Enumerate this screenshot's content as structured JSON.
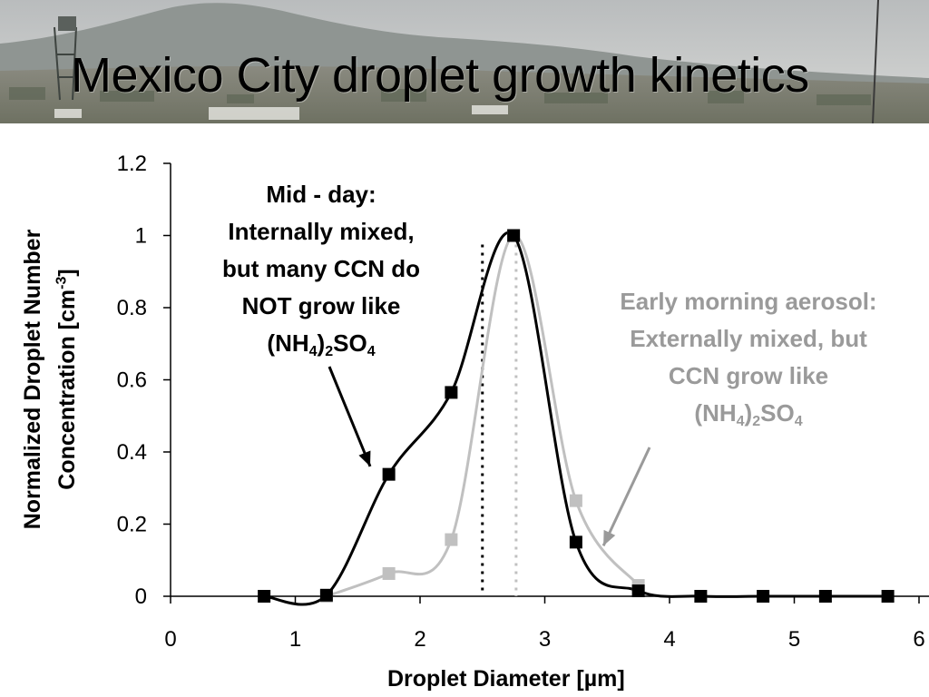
{
  "slide": {
    "title": "Mexico City droplet growth kinetics"
  },
  "colors": {
    "mid_day": "#000000",
    "early_morning": "#c0c0c0",
    "annotation_early_text": "#9a9a9a"
  },
  "chart_data": {
    "type": "line",
    "xlabel": "Droplet Diameter [µm]",
    "ylabel_line1": "Normalized Droplet Number",
    "ylabel_line2_prefix": "Concentration [cm",
    "ylabel_line2_sup": "-3",
    "ylabel_line2_suffix": "]",
    "xlim": [
      0,
      6
    ],
    "ylim": [
      0,
      1.2
    ],
    "x_ticks": [
      "0",
      "1",
      "2",
      "3",
      "4",
      "5",
      "6"
    ],
    "y_ticks": [
      "0",
      "0.2",
      "0.4",
      "0.6",
      "0.8",
      "1",
      "1.2"
    ],
    "grid": false,
    "series": [
      {
        "key": "mid_day",
        "marker": "square",
        "x": [
          0.75,
          1.25,
          1.75,
          2.25,
          2.75,
          3.25,
          3.75,
          4.25,
          4.75,
          5.25,
          5.75
        ],
        "y": [
          0.0,
          0.003,
          0.338,
          0.565,
          1.0,
          0.15,
          0.015,
          0.0,
          0.0,
          0.0,
          0.0
        ]
      },
      {
        "key": "early_morning",
        "marker": "square",
        "x": [
          1.25,
          1.75,
          2.25,
          2.75,
          3.25,
          3.75
        ],
        "y": [
          0.0,
          0.063,
          0.157,
          1.0,
          0.265,
          0.03
        ]
      }
    ],
    "vlines": [
      {
        "key": "mid_day",
        "x": 2.5,
        "style": "dotted"
      },
      {
        "key": "early_morning",
        "x": 2.77,
        "style": "dotted"
      }
    ],
    "annotations": {
      "mid_day": {
        "line1": "Mid - day:",
        "line2": "Internally mixed,",
        "line3": "but many CCN do",
        "line4": "NOT grow like",
        "formula_a": "(NH",
        "formula_sub1": "4",
        "formula_b": ")",
        "formula_sub2": "2",
        "formula_c": "SO",
        "formula_sub3": "4",
        "arrow_to": [
          1.6,
          0.36
        ]
      },
      "early_morning": {
        "line1": "Early morning aerosol:",
        "line2": "Externally mixed, but",
        "line3": "CCN grow like",
        "formula_a": "(NH",
        "formula_sub1": "4",
        "formula_b": ")",
        "formula_sub2": "2",
        "formula_c": "SO",
        "formula_sub3": "4",
        "arrow_to": [
          3.47,
          0.14
        ]
      }
    }
  }
}
